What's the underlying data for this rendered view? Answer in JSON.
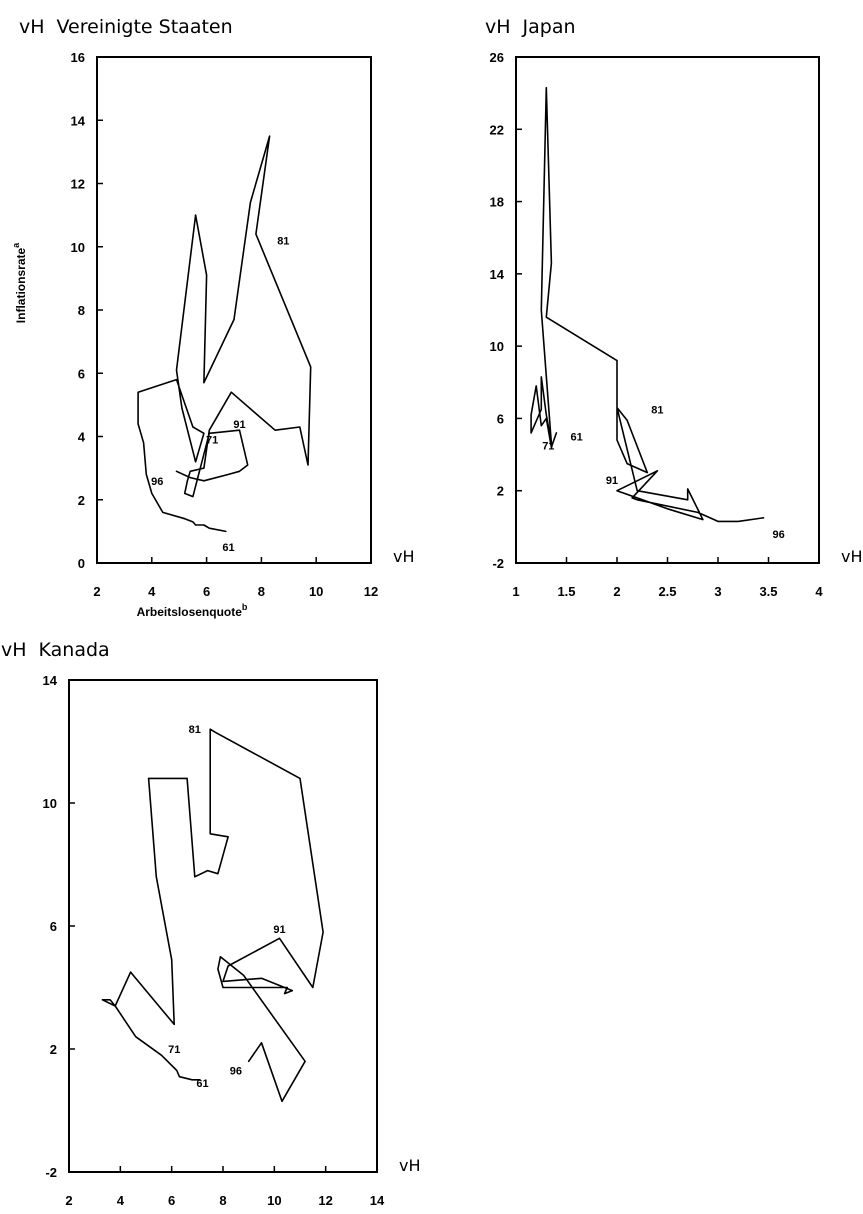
{
  "chart_data": [
    {
      "type": "line",
      "title": "Vereinigte Staaten",
      "unit_y": "vH",
      "unit_x": "vH",
      "xlabel": "Arbeitslosenquote",
      "xlabel_sup": "b",
      "ylabel": "Inflationsrate",
      "ylabel_sup": "a",
      "xlim": [
        2,
        12
      ],
      "ylim": [
        0,
        16
      ],
      "xticks": [
        "2",
        "4",
        "6",
        "8",
        "10",
        "12"
      ],
      "yticks": [
        "0",
        "2",
        "4",
        "6",
        "8",
        "10",
        "12",
        "14",
        "16"
      ],
      "series": [
        {
          "x": [
            6.7,
            6.1,
            5.9,
            5.6,
            5.5,
            5.2,
            4.4,
            4.0,
            3.8,
            3.7,
            3.5,
            3.5,
            4.9,
            5.5,
            5.9,
            5.6,
            5.1,
            4.9,
            5.6,
            6.0,
            5.9,
            7.0,
            7.6,
            8.3,
            7.8,
            9.8,
            9.7,
            9.4,
            8.5,
            6.9,
            6.1,
            5.9,
            5.4,
            5.3,
            5.2,
            5.5,
            6.1,
            7.2,
            7.5,
            7.2,
            6.8,
            5.9,
            5.4,
            4.9
          ],
          "y": [
            1.0,
            1.1,
            1.2,
            1.2,
            1.3,
            1.4,
            1.6,
            2.2,
            2.8,
            3.8,
            4.4,
            5.4,
            5.8,
            4.3,
            4.1,
            3.2,
            4.9,
            6.1,
            11.0,
            9.1,
            5.7,
            7.7,
            11.4,
            13.5,
            10.4,
            6.2,
            3.1,
            4.3,
            4.2,
            5.4,
            4.2,
            3.0,
            2.9,
            2.6,
            2.2,
            2.1,
            4.1,
            4.2,
            3.1,
            2.9,
            2.8,
            2.6,
            2.7,
            2.9
          ],
          "labels": [
            {
              "text": "61",
              "x": 6.8,
              "y": 0.5
            },
            {
              "text": "71",
              "x": 6.2,
              "y": 3.9
            },
            {
              "text": "81",
              "x": 8.8,
              "y": 10.2
            },
            {
              "text": "91",
              "x": 7.2,
              "y": 4.4
            },
            {
              "text": "96",
              "x": 4.2,
              "y": 2.6
            }
          ]
        }
      ]
    },
    {
      "type": "line",
      "title": "Japan",
      "unit_y": "vH",
      "unit_x": "vH",
      "xlim": [
        1,
        4
      ],
      "ylim": [
        -2,
        26
      ],
      "xticks": [
        "1",
        "1.5",
        "2",
        "2.5",
        "3",
        "3.5",
        "4"
      ],
      "yticks": [
        "-2",
        "2",
        "6",
        "10",
        "14",
        "18",
        "22",
        "26"
      ],
      "series": [
        {
          "x": [
            1.4,
            1.35,
            1.3,
            1.25,
            1.2,
            1.15,
            1.15,
            1.25,
            1.25,
            1.3,
            1.35,
            1.25,
            1.3,
            1.35,
            1.3,
            2.0,
            2.0,
            2.1,
            2.3,
            2.1,
            2.0,
            2.2,
            2.7,
            2.7,
            2.85,
            2.5,
            2.2,
            2.0,
            2.4,
            2.15,
            2.2,
            2.8,
            3.0,
            3.2,
            3.45
          ],
          "y": [
            5.2,
            4.4,
            6.0,
            5.6,
            7.8,
            6.2,
            5.2,
            6.5,
            8.3,
            6.2,
            4.6,
            12.0,
            24.3,
            14.6,
            11.6,
            9.2,
            4.8,
            3.5,
            3.0,
            5.9,
            6.6,
            2.0,
            1.5,
            2.1,
            0.4,
            1.0,
            1.6,
            2.0,
            3.1,
            1.6,
            1.5,
            0.8,
            0.3,
            0.3,
            0.5
          ],
          "labels": [
            {
              "text": "61",
              "x": 1.6,
              "y": 5.0
            },
            {
              "text": "71",
              "x": 1.32,
              "y": 4.5
            },
            {
              "text": "81",
              "x": 2.4,
              "y": 6.5
            },
            {
              "text": "91",
              "x": 1.95,
              "y": 2.6
            },
            {
              "text": "96",
              "x": 3.6,
              "y": -0.4
            }
          ]
        }
      ]
    },
    {
      "type": "line",
      "title": "Kanada",
      "unit_y": "vH",
      "unit_x": "vH",
      "xlim": [
        2,
        14
      ],
      "ylim": [
        -2,
        14
      ],
      "xticks": [
        "2",
        "4",
        "6",
        "8",
        "10",
        "12",
        "14"
      ],
      "yticks": [
        "-2",
        "2",
        "6",
        "10",
        "14"
      ],
      "series": [
        {
          "x": [
            7.1,
            6.8,
            6.3,
            6.2,
            5.6,
            4.6,
            3.8,
            3.3,
            3.6,
            3.8,
            4.4,
            4.6,
            6.1,
            6.0,
            5.4,
            5.1,
            6.6,
            6.9,
            7.4,
            7.8,
            8.2,
            7.5,
            7.5,
            7.7,
            11.0,
            11.9,
            11.5,
            10.2,
            8.2,
            8.0,
            9.5,
            10.7,
            10.4,
            10.5,
            8.0,
            7.8,
            7.9,
            8.8,
            11.2,
            10.3,
            9.5,
            9.0
          ],
          "y": [
            1.0,
            1.0,
            1.1,
            1.3,
            1.8,
            2.4,
            3.4,
            3.6,
            3.6,
            3.4,
            4.5,
            4.3,
            2.8,
            4.9,
            7.6,
            10.8,
            10.8,
            7.6,
            7.8,
            7.7,
            8.9,
            9.0,
            12.4,
            12.3,
            10.8,
            5.8,
            4.0,
            5.6,
            4.7,
            4.2,
            4.3,
            3.9,
            3.8,
            4.0,
            4.0,
            4.6,
            5.0,
            4.4,
            1.6,
            0.3,
            2.2,
            1.6
          ],
          "labels": [
            {
              "text": "61",
              "x": 7.2,
              "y": 0.9
            },
            {
              "text": "71",
              "x": 6.1,
              "y": 2.0
            },
            {
              "text": "81",
              "x": 6.9,
              "y": 12.4
            },
            {
              "text": "91",
              "x": 10.2,
              "y": 5.9
            },
            {
              "text": "96",
              "x": 8.5,
              "y": 1.3
            }
          ]
        }
      ]
    }
  ]
}
